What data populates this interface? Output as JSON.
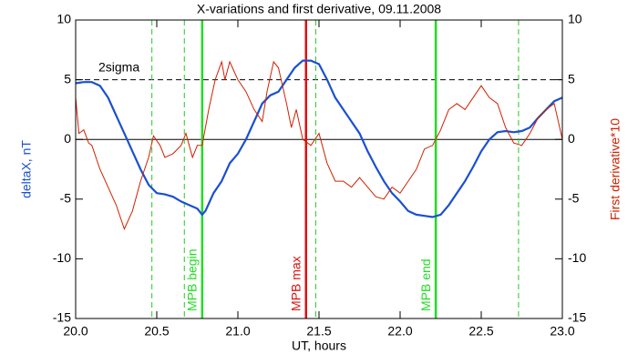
{
  "chart_data": {
    "type": "line",
    "title": "X-variations and first derivative, 09.11.2008",
    "xlabel": "UT, hours",
    "ylabel": "deltaX, nT",
    "y2label": "First derivative*10",
    "ylabel_color": "#1a50d0",
    "y2label_color": "#d02000",
    "xlim": [
      20.0,
      23.0
    ],
    "xticks": [
      {
        "value": 20.0,
        "label": "20.0"
      },
      {
        "value": 20.5,
        "label": "20.5"
      },
      {
        "value": 21.0,
        "label": "21.0"
      },
      {
        "value": 21.5,
        "label": "21.5"
      },
      {
        "value": 22.0,
        "label": "22.0"
      },
      {
        "value": 22.5,
        "label": "22.5"
      },
      {
        "value": 23.0,
        "label": "23.0"
      }
    ],
    "ylim": [
      -15,
      10
    ],
    "yticks": [
      -15,
      -10,
      -5,
      0,
      5,
      10
    ],
    "y2lim": [
      -15,
      10
    ],
    "y2ticks": [
      -15,
      -10,
      -5,
      0,
      5,
      10
    ],
    "series": [
      {
        "color": "#1a50d0",
        "axis": "y",
        "x": [
          20.0,
          20.05,
          20.1,
          20.15,
          20.2,
          20.25,
          20.3,
          20.35,
          20.4,
          20.45,
          20.5,
          20.55,
          20.6,
          20.65,
          20.7,
          20.75,
          20.78,
          20.8,
          20.85,
          20.9,
          20.95,
          21.0,
          21.05,
          21.1,
          21.15,
          21.2,
          21.25,
          21.3,
          21.35,
          21.4,
          21.45,
          21.5,
          21.55,
          21.6,
          21.65,
          21.7,
          21.75,
          21.8,
          21.85,
          21.9,
          21.95,
          22.0,
          22.05,
          22.1,
          22.15,
          22.2,
          22.25,
          22.3,
          22.35,
          22.4,
          22.45,
          22.5,
          22.55,
          22.6,
          22.65,
          22.7,
          22.75,
          22.8,
          22.85,
          22.9,
          22.95,
          23.0
        ],
        "values": [
          4.7,
          4.8,
          4.8,
          4.5,
          3.5,
          2.0,
          0.5,
          -1.0,
          -2.5,
          -3.8,
          -4.5,
          -4.6,
          -4.8,
          -5.2,
          -5.5,
          -5.8,
          -6.3,
          -6.0,
          -4.5,
          -3.5,
          -2.0,
          -1.2,
          0,
          1.5,
          3.0,
          3.7,
          4.0,
          5.0,
          6.0,
          6.6,
          6.6,
          6.3,
          5.0,
          3.5,
          2.5,
          1.5,
          0.5,
          -1.0,
          -2.3,
          -3.5,
          -4.5,
          -5.2,
          -6.0,
          -6.3,
          -6.4,
          -6.5,
          -6.3,
          -5.5,
          -4.5,
          -3.5,
          -2.3,
          -1.0,
          0,
          0.6,
          0.7,
          0.6,
          0.7,
          1.0,
          1.8,
          2.5,
          3.2,
          3.5
        ]
      },
      {
        "color": "#d02000",
        "axis": "y2",
        "x": [
          20.0,
          20.02,
          20.05,
          20.08,
          20.1,
          20.15,
          20.2,
          20.25,
          20.3,
          20.35,
          20.4,
          20.45,
          20.48,
          20.52,
          20.55,
          20.6,
          20.65,
          20.68,
          20.72,
          20.75,
          20.78,
          20.82,
          20.86,
          20.9,
          20.92,
          20.95,
          21.0,
          21.05,
          21.1,
          21.15,
          21.18,
          21.22,
          21.25,
          21.3,
          21.33,
          21.36,
          21.4,
          21.45,
          21.5,
          21.55,
          21.6,
          21.65,
          21.7,
          21.75,
          21.8,
          21.85,
          21.9,
          21.95,
          22.0,
          22.05,
          22.1,
          22.15,
          22.2,
          22.25,
          22.3,
          22.35,
          22.4,
          22.45,
          22.5,
          22.55,
          22.6,
          22.65,
          22.7,
          22.75,
          22.8,
          22.85,
          22.9,
          22.95,
          23.0
        ],
        "values": [
          3.5,
          0.5,
          0.8,
          -0.3,
          -0.5,
          -2.5,
          -4.0,
          -5.5,
          -7.5,
          -6.0,
          -3.5,
          -1.5,
          0.3,
          -0.5,
          -1.5,
          -1.2,
          -0.5,
          0.5,
          -1.5,
          -0.5,
          -0.5,
          2.5,
          5.0,
          6.5,
          5.0,
          6.5,
          5.0,
          4.0,
          2.5,
          1.5,
          4.0,
          6.5,
          6.0,
          3.0,
          1.0,
          2.5,
          0.0,
          -0.5,
          0.5,
          -2.0,
          -3.5,
          -3.5,
          -4.0,
          -3.2,
          -4.0,
          -4.8,
          -5.0,
          -4.0,
          -4.5,
          -3.5,
          -2.5,
          -0.8,
          -0.5,
          0.8,
          2.5,
          3.0,
          2.5,
          3.5,
          4.5,
          3.5,
          3.0,
          1.0,
          -0.3,
          -0.5,
          0.5,
          1.8,
          2.5,
          3.0,
          0.0
        ]
      }
    ],
    "hlines": [
      {
        "y": 5,
        "color": "#000000",
        "style": "dashed",
        "label": "2sigma"
      },
      {
        "y": 0,
        "color": "#000000",
        "style": "solid"
      }
    ],
    "vlines": [
      {
        "x": 20.47,
        "color": "#22cc22",
        "style": "dashed"
      },
      {
        "x": 20.67,
        "color": "#22cc22",
        "style": "dashed"
      },
      {
        "x": 20.78,
        "color": "#22dd22",
        "style": "solid",
        "label": "MPB begin"
      },
      {
        "x": 21.42,
        "color": "#e01010",
        "style": "solid",
        "label": "MPB max"
      },
      {
        "x": 21.48,
        "color": "#22cc22",
        "style": "dashed"
      },
      {
        "x": 22.22,
        "color": "#22dd22",
        "style": "solid",
        "label": "MPB end"
      },
      {
        "x": 22.73,
        "color": "#22cc22",
        "style": "dashed"
      }
    ]
  }
}
